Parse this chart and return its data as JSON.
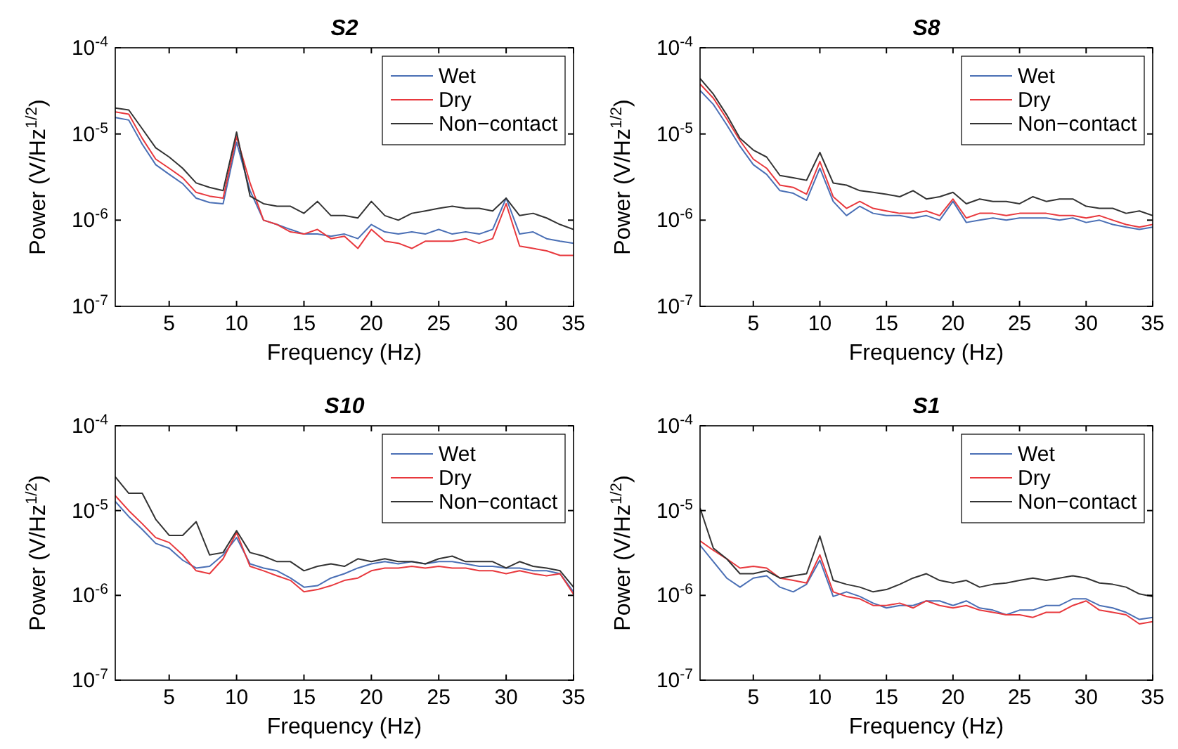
{
  "chart_data": [
    {
      "type": "line",
      "title": "S2",
      "xlabel": "Frequency (Hz)",
      "ylabel": "Power (V/Hz$^{1/2}$)",
      "log": "y",
      "grid": false,
      "legend": "top right",
      "xlim": [
        1,
        35
      ],
      "xticks": [
        5,
        10,
        15,
        20,
        25,
        30,
        35
      ],
      "ylim": [
        1e-07,
        0.0001
      ],
      "yticks": [
        {
          "value": 1e-07,
          "label": "10$^{-7}$"
        },
        {
          "value": 1e-06,
          "label": "10$^{-6}$"
        },
        {
          "value": 1e-05,
          "label": "10$^{-5}$"
        },
        {
          "value": 0.0001,
          "label": "10$^{-4}$"
        }
      ],
      "x": [
        1,
        2,
        3,
        4,
        5,
        6,
        7,
        8,
        9,
        10,
        11,
        12,
        13,
        14,
        15,
        16,
        17,
        18,
        19,
        20,
        21,
        22,
        23,
        24,
        25,
        26,
        27,
        28,
        29,
        30,
        31,
        32,
        33,
        34,
        35
      ],
      "series": [
        {
          "name": "Wet",
          "color": "#4a6fb5",
          "values": [
            1.55e-05,
            1.45e-05,
            7.6e-06,
            4.4e-06,
            3.4e-06,
            2.65e-06,
            1.8e-06,
            1.6e-06,
            1.55e-06,
            8e-06,
            2.2e-06,
            1e-06,
            8.9e-07,
            7.8e-07,
            6.9e-07,
            6.9e-07,
            6.5e-07,
            6.9e-07,
            6.1e-07,
            8.9e-07,
            7.3e-07,
            6.9e-07,
            7.3e-07,
            6.9e-07,
            7.8e-07,
            6.9e-07,
            7.3e-07,
            6.9e-07,
            7.8e-07,
            1.8e-06,
            6.9e-07,
            7.3e-07,
            6.1e-07,
            5.7e-07,
            5.4e-07
          ]
        },
        {
          "name": "Dry",
          "color": "#e8383d",
          "values": [
            1.8e-05,
            1.7e-05,
            8.9e-06,
            5.1e-06,
            4e-06,
            3.1e-06,
            2.1e-06,
            1.9e-06,
            1.8e-06,
            9.3e-06,
            2.7e-06,
            1e-06,
            8.9e-07,
            7.3e-07,
            6.9e-07,
            7.8e-07,
            6.1e-07,
            6.5e-07,
            4.7e-07,
            7.8e-07,
            5.7e-07,
            5.4e-07,
            4.7e-07,
            5.7e-07,
            5.7e-07,
            5.7e-07,
            6.1e-07,
            5.4e-07,
            6.1e-07,
            1.55e-06,
            5e-07,
            4.7e-07,
            4.4e-07,
            3.9e-07,
            3.9e-07
          ]
        },
        {
          "name": "Non−contact",
          "color": "#333333",
          "values": [
            2e-05,
            1.9e-05,
            1.15e-05,
            6.9e-06,
            5.4e-06,
            4e-06,
            2.7e-06,
            2.4e-06,
            2.2e-06,
            1.05e-05,
            1.9e-06,
            1.55e-06,
            1.45e-06,
            1.45e-06,
            1.2e-06,
            1.65e-06,
            1.13e-06,
            1.13e-06,
            1.06e-06,
            1.65e-06,
            1.13e-06,
            1e-06,
            1.2e-06,
            1.28e-06,
            1.37e-06,
            1.45e-06,
            1.37e-06,
            1.37e-06,
            1.28e-06,
            1.8e-06,
            1.13e-06,
            1.2e-06,
            1.06e-06,
            8.9e-07,
            7.8e-07
          ]
        }
      ]
    },
    {
      "type": "line",
      "title": "S8",
      "xlabel": "Frequency (Hz)",
      "ylabel": "Power (V/Hz$^{1/2}$)",
      "log": "y",
      "grid": false,
      "legend": "top right",
      "xlim": [
        1,
        35
      ],
      "xticks": [
        5,
        10,
        15,
        20,
        25,
        30,
        35
      ],
      "ylim": [
        1e-07,
        0.0001
      ],
      "yticks": [
        {
          "value": 1e-07,
          "label": "10$^{-7}$"
        },
        {
          "value": 1e-06,
          "label": "10$^{-6}$"
        },
        {
          "value": 1e-05,
          "label": "10$^{-5}$"
        },
        {
          "value": 0.0001,
          "label": "10$^{-4}$"
        }
      ],
      "x": [
        1,
        2,
        3,
        4,
        5,
        6,
        7,
        8,
        9,
        10,
        11,
        12,
        13,
        14,
        15,
        16,
        17,
        18,
        19,
        20,
        21,
        22,
        23,
        24,
        25,
        26,
        27,
        28,
        29,
        30,
        31,
        32,
        33,
        34,
        35
      ],
      "series": [
        {
          "name": "Wet",
          "color": "#4a6fb5",
          "values": [
            3.2e-05,
            2.2e-05,
            1.28e-05,
            7.2e-06,
            4.4e-06,
            3.4e-06,
            2.2e-06,
            2.05e-06,
            1.7e-06,
            4e-06,
            1.65e-06,
            1.13e-06,
            1.45e-06,
            1.2e-06,
            1.13e-06,
            1.13e-06,
            1.06e-06,
            1.13e-06,
            1e-06,
            1.65e-06,
            9.4e-07,
            1e-06,
            1.06e-06,
            1e-06,
            1.06e-06,
            1.06e-06,
            1.06e-06,
            1e-06,
            1.06e-06,
            9.4e-07,
            1e-06,
            8.9e-07,
            8.3e-07,
            7.8e-07,
            8.3e-07
          ]
        },
        {
          "name": "Dry",
          "color": "#e8383d",
          "values": [
            3.8e-05,
            2.6e-05,
            1.5e-05,
            8.4e-06,
            5.1e-06,
            4e-06,
            2.55e-06,
            2.4e-06,
            2e-06,
            4.8e-06,
            1.87e-06,
            1.37e-06,
            1.65e-06,
            1.37e-06,
            1.28e-06,
            1.2e-06,
            1.2e-06,
            1.28e-06,
            1.13e-06,
            1.76e-06,
            1.06e-06,
            1.2e-06,
            1.2e-06,
            1.13e-06,
            1.2e-06,
            1.2e-06,
            1.2e-06,
            1.13e-06,
            1.13e-06,
            1.06e-06,
            1.13e-06,
            1e-06,
            8.9e-07,
            8.3e-07,
            8.9e-07
          ]
        },
        {
          "name": "Non−contact",
          "color": "#333333",
          "values": [
            4.4e-05,
            2.9e-05,
            1.67e-05,
            8.9e-06,
            6.5e-06,
            5.4e-06,
            3.3e-06,
            3.1e-06,
            2.9e-06,
            6.1e-06,
            2.7e-06,
            2.55e-06,
            2.2e-06,
            2.1e-06,
            2e-06,
            1.87e-06,
            2.2e-06,
            1.76e-06,
            1.87e-06,
            2.1e-06,
            1.55e-06,
            1.76e-06,
            1.65e-06,
            1.65e-06,
            1.55e-06,
            1.87e-06,
            1.65e-06,
            1.76e-06,
            1.76e-06,
            1.45e-06,
            1.37e-06,
            1.37e-06,
            1.2e-06,
            1.28e-06,
            1.13e-06
          ]
        }
      ]
    },
    {
      "type": "line",
      "title": "S10",
      "xlabel": "Frequency (Hz)",
      "ylabel": "Power (V/Hz$^{1/2}$)",
      "log": "y",
      "grid": false,
      "legend": "top right",
      "xlim": [
        1,
        35
      ],
      "xticks": [
        5,
        10,
        15,
        20,
        25,
        30,
        35
      ],
      "ylim": [
        1e-07,
        0.0001
      ],
      "yticks": [
        {
          "value": 1e-07,
          "label": "10$^{-7}$"
        },
        {
          "value": 1e-06,
          "label": "10$^{-6}$"
        },
        {
          "value": 1e-05,
          "label": "10$^{-5}$"
        },
        {
          "value": 0.0001,
          "label": "10$^{-4}$"
        }
      ],
      "x": [
        1,
        2,
        3,
        4,
        5,
        6,
        7,
        8,
        9,
        10,
        11,
        12,
        13,
        14,
        15,
        16,
        17,
        18,
        19,
        20,
        21,
        22,
        23,
        24,
        25,
        26,
        27,
        28,
        29,
        30,
        31,
        32,
        33,
        34,
        35
      ],
      "series": [
        {
          "name": "Wet",
          "color": "#4a6fb5",
          "values": [
            1.28e-05,
            8.5e-06,
            6e-06,
            4.1e-06,
            3.6e-06,
            2.6e-06,
            2.1e-06,
            2.2e-06,
            3e-06,
            4.8e-06,
            2.35e-06,
            2.1e-06,
            1.95e-06,
            1.6e-06,
            1.25e-06,
            1.3e-06,
            1.6e-06,
            1.8e-06,
            2.1e-06,
            2.35e-06,
            2.5e-06,
            2.35e-06,
            2.5e-06,
            2.35e-06,
            2.5e-06,
            2.5e-06,
            2.35e-06,
            2.2e-06,
            2.2e-06,
            2.1e-06,
            2.1e-06,
            1.95e-06,
            1.95e-06,
            1.8e-06,
            1.1e-06
          ]
        },
        {
          "name": "Dry",
          "color": "#e8383d",
          "values": [
            1.5e-05,
            1e-05,
            7e-06,
            4.8e-06,
            4.2e-06,
            3e-06,
            1.95e-06,
            1.8e-06,
            2.7e-06,
            5.5e-06,
            2.2e-06,
            1.95e-06,
            1.7e-06,
            1.5e-06,
            1.1e-06,
            1.17e-06,
            1.3e-06,
            1.5e-06,
            1.6e-06,
            1.95e-06,
            2.1e-06,
            2.1e-06,
            2.2e-06,
            2.1e-06,
            2.2e-06,
            2.1e-06,
            2.1e-06,
            1.95e-06,
            1.95e-06,
            1.8e-06,
            1.95e-06,
            1.8e-06,
            1.7e-06,
            1.8e-06,
            1.03e-06
          ]
        },
        {
          "name": "Non−contact",
          "color": "#333333",
          "values": [
            2.5e-05,
            1.6e-05,
            1.6e-05,
            7.9e-06,
            5.1e-06,
            5.1e-06,
            7.4e-06,
            3e-06,
            3.2e-06,
            5.8e-06,
            3.2e-06,
            2.9e-06,
            2.5e-06,
            2.5e-06,
            1.95e-06,
            2.2e-06,
            2.35e-06,
            2.2e-06,
            2.7e-06,
            2.5e-06,
            2.7e-06,
            2.5e-06,
            2.5e-06,
            2.35e-06,
            2.7e-06,
            2.9e-06,
            2.5e-06,
            2.5e-06,
            2.5e-06,
            2.1e-06,
            2.5e-06,
            2.2e-06,
            2.1e-06,
            1.95e-06,
            1.25e-06
          ]
        }
      ]
    },
    {
      "type": "line",
      "title": "S1",
      "xlabel": "Frequency (Hz)",
      "ylabel": "Power (V/Hz$^{1/2}$)",
      "log": "y",
      "grid": false,
      "legend": "top right",
      "xlim": [
        1,
        35
      ],
      "xticks": [
        5,
        10,
        15,
        20,
        25,
        30,
        35
      ],
      "ylim": [
        1e-07,
        0.0001
      ],
      "yticks": [
        {
          "value": 1e-07,
          "label": "10$^{-7}$"
        },
        {
          "value": 1e-06,
          "label": "10$^{-6}$"
        },
        {
          "value": 1e-05,
          "label": "10$^{-5}$"
        },
        {
          "value": 0.0001,
          "label": "10$^{-4}$"
        }
      ],
      "x": [
        1,
        2,
        3,
        4,
        5,
        6,
        7,
        8,
        9,
        10,
        11,
        12,
        13,
        14,
        15,
        16,
        17,
        18,
        19,
        20,
        21,
        22,
        23,
        24,
        25,
        26,
        27,
        28,
        29,
        30,
        31,
        32,
        33,
        34,
        35
      ],
      "series": [
        {
          "name": "Wet",
          "color": "#4a6fb5",
          "values": [
            3.9e-06,
            2.5e-06,
            1.6e-06,
            1.25e-06,
            1.6e-06,
            1.7e-06,
            1.25e-06,
            1.1e-06,
            1.35e-06,
            2.6e-06,
            9.7e-07,
            1.1e-06,
            9.7e-07,
            8.1e-07,
            7.1e-07,
            7.6e-07,
            7.6e-07,
            8.6e-07,
            8.6e-07,
            7.6e-07,
            8.6e-07,
            7.1e-07,
            6.7e-07,
            5.9e-07,
            6.7e-07,
            6.7e-07,
            7.6e-07,
            7.6e-07,
            9.1e-07,
            9.1e-07,
            7.6e-07,
            7.1e-07,
            6.3e-07,
            5.2e-07,
            5.5e-07
          ]
        },
        {
          "name": "Dry",
          "color": "#e8383d",
          "values": [
            4.4e-06,
            3.4e-06,
            2.7e-06,
            2.1e-06,
            2.2e-06,
            2.1e-06,
            1.6e-06,
            1.5e-06,
            1.4e-06,
            3e-06,
            1.1e-06,
            9.7e-07,
            9.1e-07,
            7.6e-07,
            7.6e-07,
            8.1e-07,
            7.1e-07,
            8.6e-07,
            7.6e-07,
            7.1e-07,
            7.6e-07,
            6.7e-07,
            6.3e-07,
            5.9e-07,
            5.9e-07,
            5.5e-07,
            6.3e-07,
            6.3e-07,
            7.6e-07,
            8.6e-07,
            6.7e-07,
            6.3e-07,
            5.9e-07,
            4.6e-07,
            4.9e-07
          ]
        },
        {
          "name": "Non−contact",
          "color": "#333333",
          "values": [
            1.07e-05,
            3.6e-06,
            2.7e-06,
            1.8e-06,
            1.8e-06,
            1.95e-06,
            1.6e-06,
            1.7e-06,
            1.8e-06,
            5e-06,
            1.5e-06,
            1.35e-06,
            1.25e-06,
            1.1e-06,
            1.17e-06,
            1.35e-06,
            1.6e-06,
            1.8e-06,
            1.5e-06,
            1.4e-06,
            1.5e-06,
            1.25e-06,
            1.35e-06,
            1.4e-06,
            1.5e-06,
            1.6e-06,
            1.5e-06,
            1.6e-06,
            1.7e-06,
            1.6e-06,
            1.4e-06,
            1.35e-06,
            1.25e-06,
            1.04e-06,
            9.7e-07
          ]
        }
      ]
    }
  ]
}
